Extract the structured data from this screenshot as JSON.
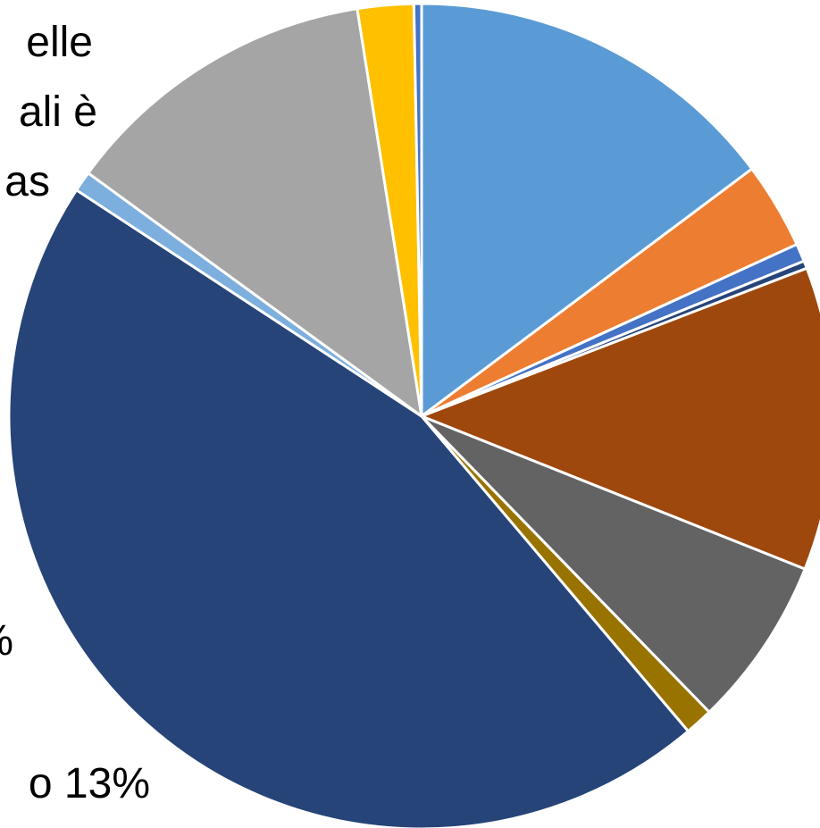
{
  "chart_data": {
    "type": "pie",
    "title": "",
    "legend": "none",
    "slices": [
      {
        "value": 14.8,
        "color": "#5B9BD5"
      },
      {
        "value": 3.4,
        "color": "#ED7D31"
      },
      {
        "value": 0.7,
        "color": "#4472C4"
      },
      {
        "value": 0.3,
        "color": "#264478"
      },
      {
        "value": 11.9,
        "color": "#9E480E"
      },
      {
        "value": 6.7,
        "color": "#636363"
      },
      {
        "value": 1.1,
        "color": "#997300"
      },
      {
        "value": 45.5,
        "color": "#264478"
      },
      {
        "value": 0.8,
        "color": "#7CAFDD"
      },
      {
        "value": 12.5,
        "color": "#A5A5A5"
      },
      {
        "value": 2.2,
        "color": "#FFC000"
      },
      {
        "value": 0.3,
        "color": "#4472C4"
      }
    ],
    "label_fragments": [
      "elle",
      "ali è",
      "as",
      "%",
      "o 13%"
    ]
  }
}
